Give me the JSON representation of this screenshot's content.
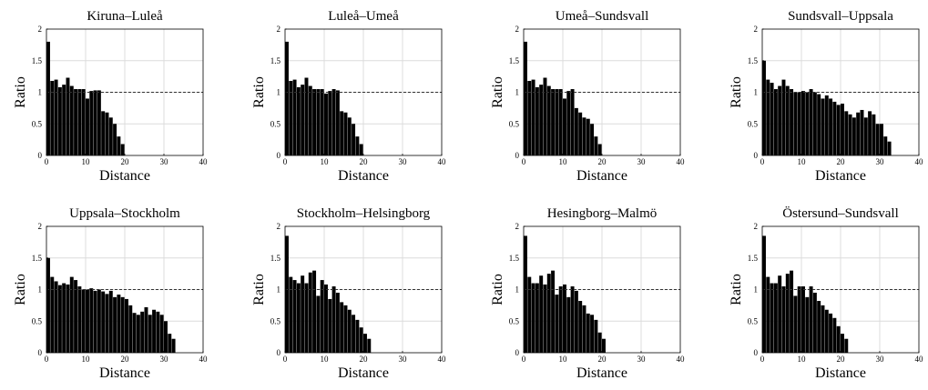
{
  "figure": {
    "ref_line_value": 1
  },
  "chart_data": [
    {
      "type": "bar",
      "title": "Kiruna–Luleå",
      "xlabel": "Distance",
      "ylabel": "Ratio",
      "xlim": [
        0,
        40
      ],
      "ylim": [
        0,
        2
      ],
      "xticks": [
        "0",
        "10",
        "20",
        "30",
        "40"
      ],
      "yticks": [
        "0",
        "0.5",
        "1",
        "1.5",
        "2"
      ],
      "grid": true,
      "bar_color": "#000000",
      "x": [
        0,
        1,
        2,
        3,
        4,
        5,
        6,
        7,
        8,
        9,
        10,
        11,
        12,
        13,
        14,
        15,
        16,
        17,
        18,
        19,
        20
      ],
      "values": [
        1.8,
        1.18,
        1.2,
        1.08,
        1.12,
        1.23,
        1.1,
        1.05,
        1.05,
        1.05,
        0.9,
        1.02,
        1.03,
        1.03,
        0.7,
        0.68,
        0.6,
        0.5,
        0.3,
        0.18,
        0
      ]
    },
    {
      "type": "bar",
      "title": "Luleå–Umeå",
      "xlabel": "Distance",
      "ylabel": "Ratio",
      "xlim": [
        0,
        40
      ],
      "ylim": [
        0,
        2
      ],
      "xticks": [
        "0",
        "10",
        "20",
        "30",
        "40"
      ],
      "yticks": [
        "0",
        "0.5",
        "1",
        "1.5",
        "2"
      ],
      "grid": true,
      "bar_color": "#000000",
      "x": [
        0,
        1,
        2,
        3,
        4,
        5,
        6,
        7,
        8,
        9,
        10,
        11,
        12,
        13,
        14,
        15,
        16,
        17,
        18,
        19,
        20
      ],
      "values": [
        1.8,
        1.18,
        1.2,
        1.08,
        1.12,
        1.23,
        1.1,
        1.05,
        1.05,
        1.05,
        0.98,
        1.02,
        1.05,
        1.03,
        0.7,
        0.68,
        0.6,
        0.5,
        0.3,
        0.18,
        0
      ]
    },
    {
      "type": "bar",
      "title": "Umeå–Sundsvall",
      "xlabel": "Distance",
      "ylabel": "Ratio",
      "xlim": [
        0,
        40
      ],
      "ylim": [
        0,
        2
      ],
      "xticks": [
        "0",
        "10",
        "20",
        "30",
        "40"
      ],
      "yticks": [
        "0",
        "0.5",
        "1",
        "1.5",
        "2"
      ],
      "grid": true,
      "bar_color": "#000000",
      "x": [
        0,
        1,
        2,
        3,
        4,
        5,
        6,
        7,
        8,
        9,
        10,
        11,
        12,
        13,
        14,
        15,
        16,
        17,
        18,
        19,
        20
      ],
      "values": [
        1.8,
        1.18,
        1.2,
        1.08,
        1.12,
        1.23,
        1.1,
        1.05,
        1.05,
        1.05,
        0.9,
        1.02,
        1.05,
        0.75,
        0.68,
        0.6,
        0.58,
        0.5,
        0.3,
        0.18,
        0
      ]
    },
    {
      "type": "bar",
      "title": "Sundsvall–Uppsala",
      "xlabel": "Distance",
      "ylabel": "Ratio",
      "xlim": [
        0,
        40
      ],
      "ylim": [
        0,
        2
      ],
      "xticks": [
        "0",
        "10",
        "20",
        "30",
        "40"
      ],
      "yticks": [
        "0",
        "0.5",
        "1",
        "1.5",
        "2"
      ],
      "grid": true,
      "bar_color": "#000000",
      "x": [
        0,
        1,
        2,
        3,
        4,
        5,
        6,
        7,
        8,
        9,
        10,
        11,
        12,
        13,
        14,
        15,
        16,
        17,
        18,
        19,
        20,
        21,
        22,
        23,
        24,
        25,
        26,
        27,
        28,
        29,
        30,
        31,
        32,
        33
      ],
      "values": [
        1.5,
        1.2,
        1.15,
        1.05,
        1.1,
        1.2,
        1.1,
        1.05,
        1.0,
        1.0,
        1.02,
        1.0,
        1.05,
        1.0,
        0.97,
        0.9,
        0.95,
        0.9,
        0.85,
        0.8,
        0.82,
        0.7,
        0.65,
        0.6,
        0.68,
        0.72,
        0.6,
        0.7,
        0.65,
        0.5,
        0.5,
        0.3,
        0.22,
        0
      ]
    },
    {
      "type": "bar",
      "title": "Uppsala–Stockholm",
      "xlabel": "Distance",
      "ylabel": "Ratio",
      "xlim": [
        0,
        40
      ],
      "ylim": [
        0,
        2
      ],
      "xticks": [
        "0",
        "10",
        "20",
        "30",
        "40"
      ],
      "yticks": [
        "0",
        "0.5",
        "1",
        "1.5",
        "2"
      ],
      "grid": true,
      "bar_color": "#000000",
      "x": [
        0,
        1,
        2,
        3,
        4,
        5,
        6,
        7,
        8,
        9,
        10,
        11,
        12,
        13,
        14,
        15,
        16,
        17,
        18,
        19,
        20,
        21,
        22,
        23,
        24,
        25,
        26,
        27,
        28,
        29,
        30,
        31,
        32,
        33
      ],
      "values": [
        1.5,
        1.2,
        1.13,
        1.07,
        1.1,
        1.08,
        1.2,
        1.15,
        1.05,
        1.0,
        1.0,
        1.02,
        0.98,
        1.0,
        0.97,
        0.93,
        0.98,
        0.88,
        0.92,
        0.88,
        0.85,
        0.75,
        0.63,
        0.6,
        0.65,
        0.72,
        0.6,
        0.68,
        0.65,
        0.6,
        0.5,
        0.3,
        0.22,
        0
      ]
    },
    {
      "type": "bar",
      "title": "Stockholm–Helsingborg",
      "xlabel": "Distance",
      "ylabel": "Ratio",
      "xlim": [
        0,
        40
      ],
      "ylim": [
        0,
        2
      ],
      "xticks": [
        "0",
        "10",
        "20",
        "30",
        "40"
      ],
      "yticks": [
        "0",
        "0.5",
        "1",
        "1.5",
        "2"
      ],
      "grid": true,
      "bar_color": "#000000",
      "x": [
        0,
        1,
        2,
        3,
        4,
        5,
        6,
        7,
        8,
        9,
        10,
        11,
        12,
        13,
        14,
        15,
        16,
        17,
        18,
        19,
        20,
        21
      ],
      "values": [
        1.85,
        1.2,
        1.15,
        1.1,
        1.22,
        1.1,
        1.27,
        1.3,
        0.9,
        1.15,
        1.08,
        0.85,
        1.05,
        0.95,
        0.8,
        0.75,
        0.68,
        0.6,
        0.52,
        0.4,
        0.3,
        0.22
      ]
    },
    {
      "type": "bar",
      "title": "Hesingborg–Malmö",
      "xlabel": "Distance",
      "ylabel": "Ratio",
      "xlim": [
        0,
        40
      ],
      "ylim": [
        0,
        2
      ],
      "xticks": [
        "0",
        "10",
        "20",
        "30",
        "40"
      ],
      "yticks": [
        "0",
        "0.5",
        "1",
        "1.5",
        "2"
      ],
      "grid": true,
      "bar_color": "#000000",
      "x": [
        0,
        1,
        2,
        3,
        4,
        5,
        6,
        7,
        8,
        9,
        10,
        11,
        12,
        13,
        14,
        15,
        16,
        17,
        18,
        19,
        20
      ],
      "values": [
        1.85,
        1.2,
        1.1,
        1.1,
        1.22,
        1.08,
        1.25,
        1.3,
        0.92,
        1.05,
        1.08,
        0.88,
        1.05,
        0.98,
        0.82,
        0.75,
        0.62,
        0.6,
        0.52,
        0.32,
        0.22
      ]
    },
    {
      "type": "bar",
      "title": "Östersund–Sundsvall",
      "xlabel": "Distance",
      "ylabel": "Ratio",
      "xlim": [
        0,
        40
      ],
      "ylim": [
        0,
        2
      ],
      "xticks": [
        "0",
        "10",
        "20",
        "30",
        "40"
      ],
      "yticks": [
        "0",
        "0.5",
        "1",
        "1.5",
        "2"
      ],
      "grid": true,
      "bar_color": "#000000",
      "x": [
        0,
        1,
        2,
        3,
        4,
        5,
        6,
        7,
        8,
        9,
        10,
        11,
        12,
        13,
        14,
        15,
        16,
        17,
        18,
        19,
        20,
        21
      ],
      "values": [
        1.85,
        1.2,
        1.1,
        1.1,
        1.22,
        1.05,
        1.25,
        1.3,
        0.9,
        1.05,
        1.05,
        0.88,
        1.05,
        0.95,
        0.82,
        0.75,
        0.68,
        0.62,
        0.55,
        0.42,
        0.3,
        0.22
      ]
    }
  ]
}
